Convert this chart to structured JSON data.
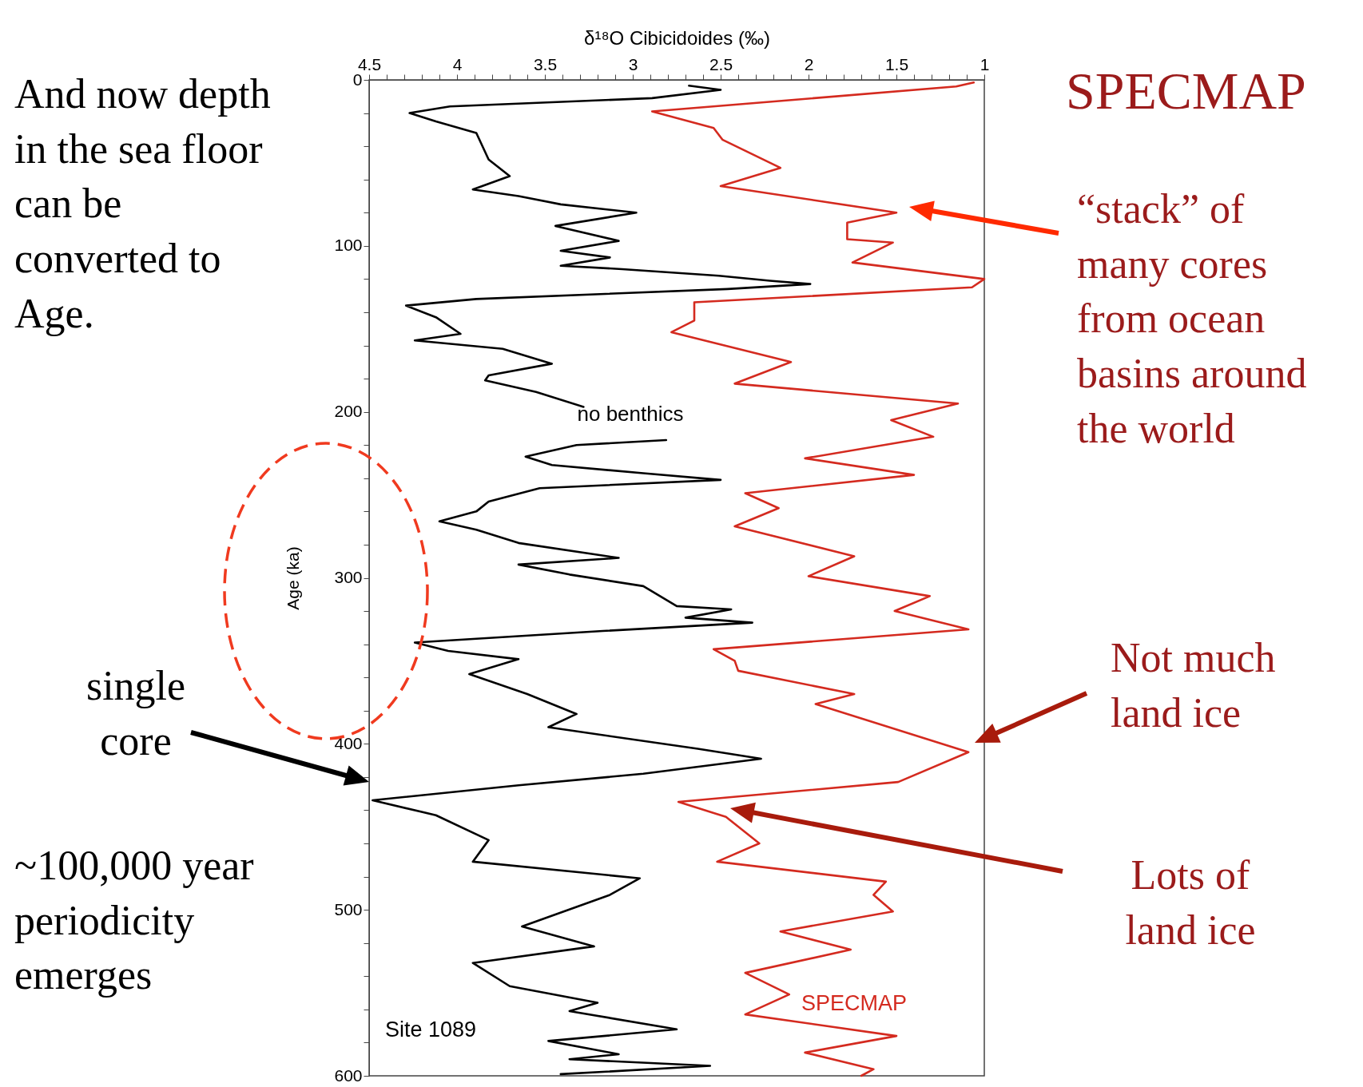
{
  "chart_data": {
    "type": "line",
    "orientation": "horizontal",
    "xlabel": "δ¹⁸O Cibicidoides (‰)",
    "ylabel": "Age (ka)",
    "xlim": [
      4.5,
      1
    ],
    "ylim": [
      600,
      0
    ],
    "xticks": [
      4.5,
      {
        "value": 4.4,
        "label": null
      },
      {
        "value": 4.3,
        "label": null
      },
      {
        "value": 4.2,
        "label": null
      },
      {
        "value": 4.1,
        "label": null
      },
      4,
      {
        "value": 3.9,
        "label": null
      },
      {
        "value": 3.8,
        "label": null
      },
      {
        "value": 3.7,
        "label": null
      },
      {
        "value": 3.6,
        "label": null
      },
      3.5,
      {
        "value": 3.4,
        "label": null
      },
      {
        "value": 3.3,
        "label": null
      },
      {
        "value": 3.2,
        "label": null
      },
      {
        "value": 3.1,
        "label": null
      },
      3,
      {
        "value": 2.9,
        "label": null
      },
      {
        "value": 2.8,
        "label": null
      },
      {
        "value": 2.7,
        "label": null
      },
      {
        "value": 2.6,
        "label": null
      },
      2.5,
      {
        "value": 2.4,
        "label": null
      },
      {
        "value": 2.3,
        "label": null
      },
      {
        "value": 2.2,
        "label": null
      },
      {
        "value": 2.1,
        "label": null
      },
      2,
      {
        "value": 1.9,
        "label": null
      },
      {
        "value": 1.8,
        "label": null
      },
      {
        "value": 1.7,
        "label": null
      },
      {
        "value": 1.6,
        "label": null
      },
      1.5,
      {
        "value": 1.4,
        "label": null
      },
      {
        "value": 1.3,
        "label": null
      },
      {
        "value": 1.2,
        "label": null
      },
      {
        "value": 1.1,
        "label": null
      },
      1
    ],
    "yticks": [
      0,
      {
        "value": 20,
        "label": null
      },
      {
        "value": 40,
        "label": null
      },
      {
        "value": 60,
        "label": null
      },
      {
        "value": 80,
        "label": null
      },
      100,
      {
        "value": 120,
        "label": null
      },
      {
        "value": 140,
        "label": null
      },
      {
        "value": 160,
        "label": null
      },
      {
        "value": 180,
        "label": null
      },
      200,
      {
        "value": 220,
        "label": null
      },
      {
        "value": 240,
        "label": null
      },
      {
        "value": 260,
        "label": null
      },
      {
        "value": 280,
        "label": null
      },
      300,
      {
        "value": 320,
        "label": null
      },
      {
        "value": 340,
        "label": null
      },
      {
        "value": 360,
        "label": null
      },
      {
        "value": 380,
        "label": null
      },
      400,
      {
        "value": 420,
        "label": null
      },
      {
        "value": 440,
        "label": null
      },
      {
        "value": 460,
        "label": null
      },
      {
        "value": 480,
        "label": null
      },
      500,
      {
        "value": 520,
        "label": null
      },
      {
        "value": 540,
        "label": null
      },
      {
        "value": 560,
        "label": null
      },
      {
        "value": 580,
        "label": null
      },
      600
    ],
    "grid": false,
    "legend": false,
    "series": [
      {
        "name": "Site 1089",
        "color": "#000000",
        "x": [
          3.5,
          6,
          11,
          16,
          20,
          25,
          32,
          48,
          58,
          66,
          70,
          75,
          80,
          88,
          97,
          103,
          107,
          112,
          114,
          118,
          121,
          123,
          126,
          132,
          136,
          143,
          153,
          157,
          162,
          171,
          178,
          181,
          188,
          197,
          207,
          217,
          220,
          227,
          232,
          237,
          241,
          246,
          254,
          260,
          266,
          271,
          279,
          288,
          292,
          298,
          305,
          317,
          319,
          324,
          327,
          332,
          339,
          344,
          349,
          358,
          370,
          382,
          390,
          403,
          409,
          418,
          425,
          434,
          443,
          458,
          471,
          481,
          491,
          510,
          522,
          532,
          546,
          556,
          561,
          572,
          579,
          587,
          590,
          594,
          599
        ],
        "values": [
          2.68,
          2.5,
          2.89,
          4.04,
          4.27,
          4.12,
          3.89,
          3.82,
          3.7,
          3.91,
          3.65,
          3.41,
          2.98,
          3.44,
          3.08,
          3.41,
          3.13,
          3.41,
          3.06,
          2.51,
          2.22,
          1.99,
          2.46,
          3.89,
          4.29,
          4.12,
          3.98,
          4.24,
          3.74,
          3.46,
          3.82,
          3.84,
          3.55,
          3.28,
          null,
          2.81,
          3.32,
          3.61,
          3.46,
          2.94,
          2.5,
          3.53,
          3.82,
          3.89,
          4.1,
          3.89,
          3.65,
          3.08,
          3.65,
          3.36,
          2.94,
          2.75,
          2.44,
          2.7,
          2.32,
          3.17,
          4.24,
          4.05,
          3.65,
          3.93,
          3.6,
          3.32,
          3.48,
          2.63,
          2.27,
          2.94,
          3.65,
          4.48,
          4.12,
          3.82,
          3.91,
          2.96,
          3.13,
          3.63,
          3.22,
          3.91,
          3.7,
          3.2,
          3.36,
          2.75,
          3.48,
          3.08,
          3.36,
          2.56,
          3.41
        ]
      },
      {
        "name": "SPECMAP",
        "color": "#d42a1f",
        "x": [
          1.6,
          4,
          19,
          29,
          36,
          53,
          64,
          80,
          86,
          96,
          98,
          110,
          120,
          125,
          134,
          145,
          152,
          170,
          183,
          195,
          205,
          215,
          228,
          238,
          249,
          258,
          269,
          287,
          299,
          311,
          320,
          331,
          343,
          350,
          356,
          370,
          376,
          405,
          423,
          435,
          444,
          460,
          471,
          483,
          491,
          501,
          513,
          524,
          538,
          551,
          563,
          576,
          586,
          596,
          600
        ],
        "values": [
          1.06,
          1.16,
          2.89,
          2.54,
          2.49,
          2.16,
          2.5,
          1.5,
          1.78,
          1.78,
          1.52,
          1.75,
          1.0,
          1.07,
          2.65,
          2.65,
          2.78,
          2.1,
          2.42,
          1.15,
          1.53,
          1.29,
          2.02,
          1.4,
          2.36,
          2.17,
          2.42,
          1.74,
          2.0,
          1.31,
          1.51,
          1.09,
          2.54,
          2.42,
          2.4,
          1.74,
          1.96,
          1.09,
          1.49,
          2.74,
          2.47,
          2.28,
          2.52,
          1.56,
          1.63,
          1.52,
          2.16,
          1.76,
          2.36,
          2.11,
          2.36,
          1.5,
          2.02,
          1.63,
          1.7
        ]
      }
    ],
    "annotations": [
      "And now depth in the sea floor can be converted to Age.",
      "SPECMAP",
      "“stack” of many cores from ocean basins around the world",
      "Not much land ice",
      "Lots of land ice",
      "single core",
      "~100,000 year periodicity emerges",
      "no benthics"
    ]
  }
}
